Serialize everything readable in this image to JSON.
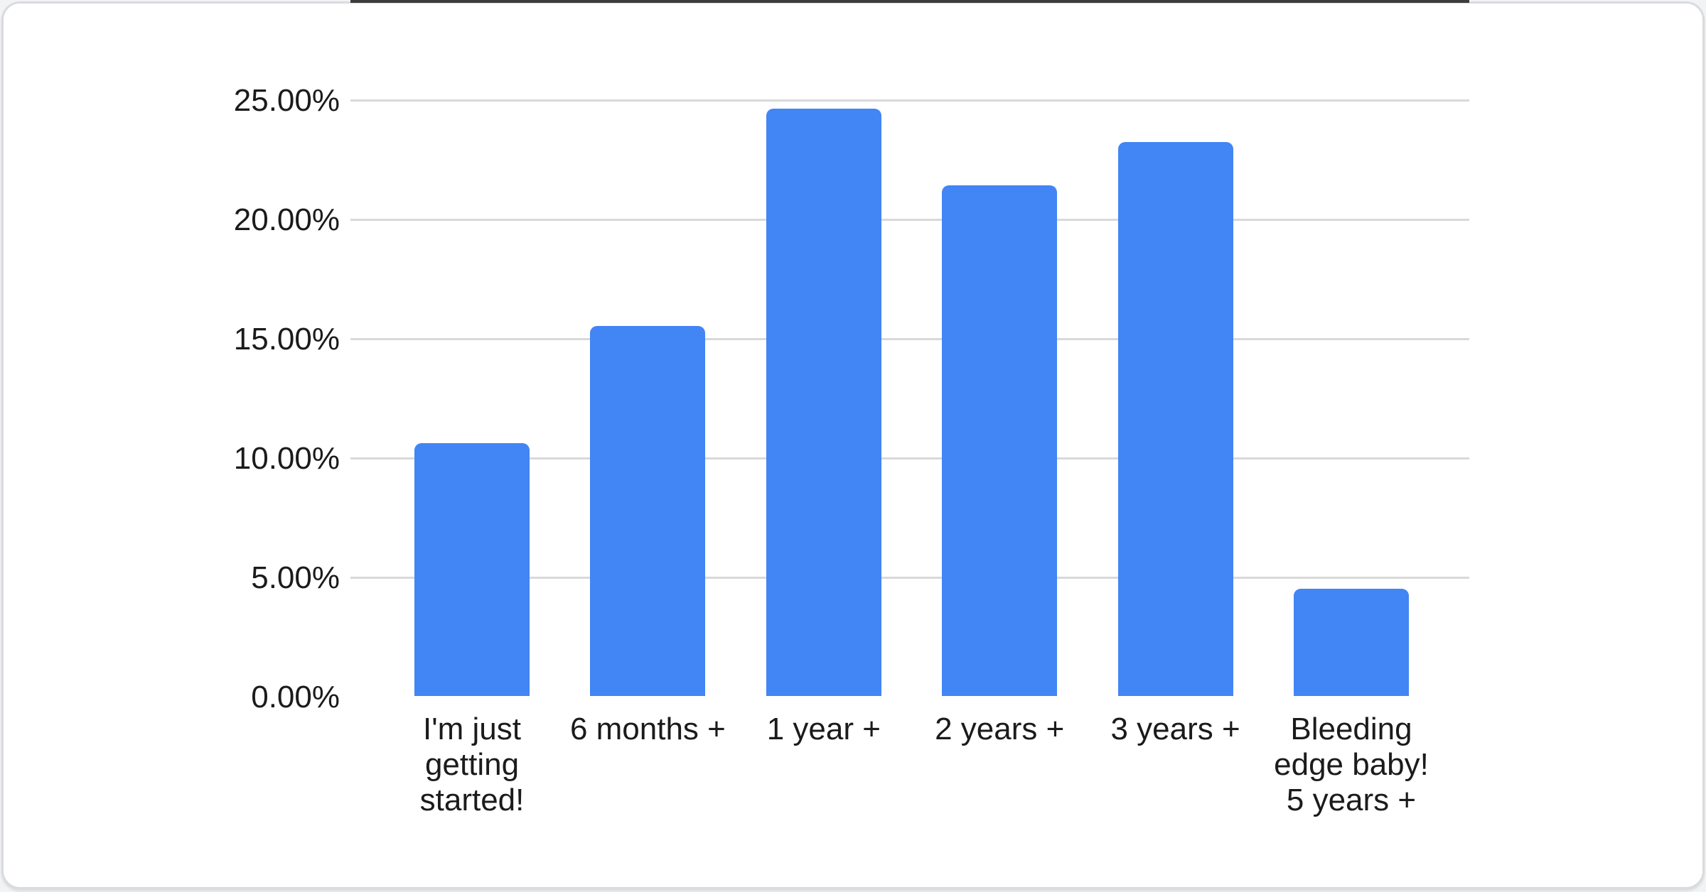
{
  "chart_data": {
    "type": "bar",
    "title": "",
    "xlabel": "",
    "ylabel": "",
    "categories": [
      "I'm just getting started!",
      "6 months +",
      "1 year +",
      "2 years +",
      "3 years +",
      "Bleeding edge baby! 5 years +"
    ],
    "values": [
      10.6,
      15.5,
      24.6,
      21.4,
      23.2,
      4.5
    ],
    "value_unit": "%",
    "y_ticks": [
      "0.00%",
      "5.00%",
      "10.00%",
      "15.00%",
      "20.00%",
      "25.00%"
    ],
    "ylim": [
      0,
      25
    ],
    "grid": true,
    "legend": "none",
    "colors": {
      "bar": "#4285f4",
      "gridline": "#d9d9d9",
      "axis_line": "#3c3c3c",
      "text": "#1b1b1b",
      "card_background": "#ffffff",
      "card_border": "#d9dbde"
    }
  }
}
